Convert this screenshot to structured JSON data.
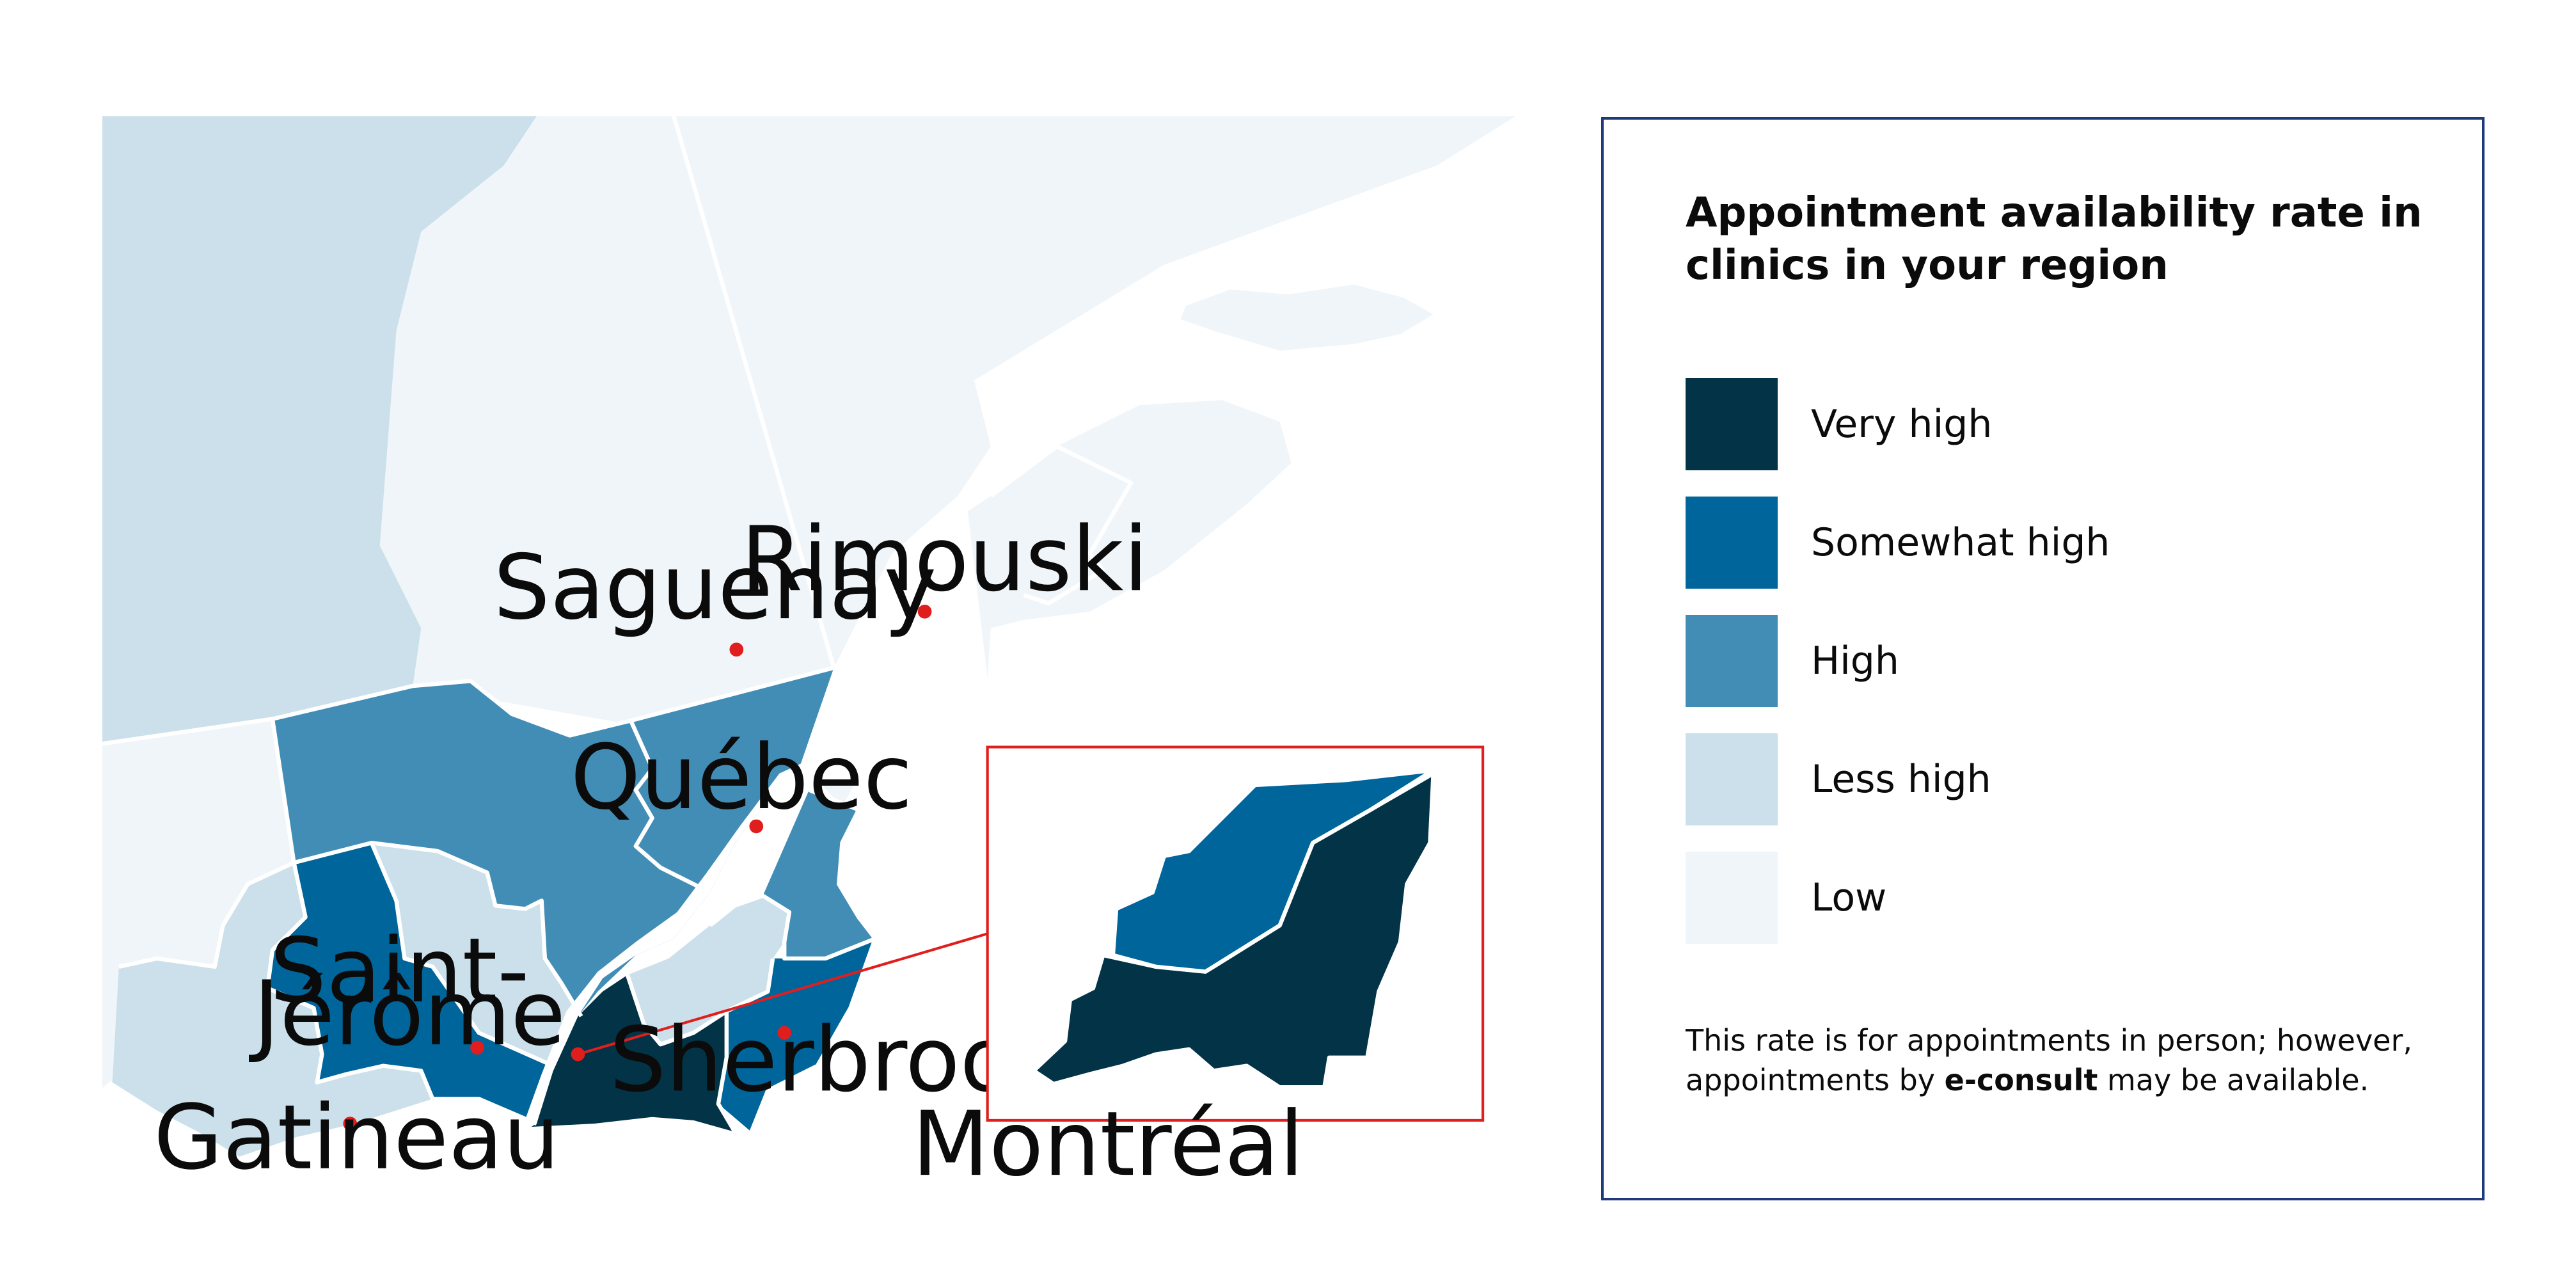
{
  "legend": {
    "title": "Appointment availability rate in clinics in your region",
    "items": [
      {
        "label": "Very high",
        "color": "#023346"
      },
      {
        "label": "Somewhat high",
        "color": "#00659a"
      },
      {
        "label": "High",
        "color": "#428db6"
      },
      {
        "label": "Less high",
        "color": "#cbe0ea"
      },
      {
        "label": "Low",
        "color": "#eff5f9"
      }
    ],
    "note_before": "This rate is for appointments in person; however, appointments by ",
    "note_bold": "e-consult",
    "note_after": " may be available."
  },
  "cities": {
    "saguenay": "Saguenay",
    "rimouski": "Rimouski",
    "quebec": "Québec",
    "saint_jerome_1": "Saint-",
    "saint_jerome_2": "Jérôme",
    "sherbrooke": "Sherbrooke",
    "gatineau": "Gatineau"
  },
  "inset": {
    "label": "Montréal",
    "border_color": "#e01e1e"
  },
  "marker_color": "#e01e1e"
}
